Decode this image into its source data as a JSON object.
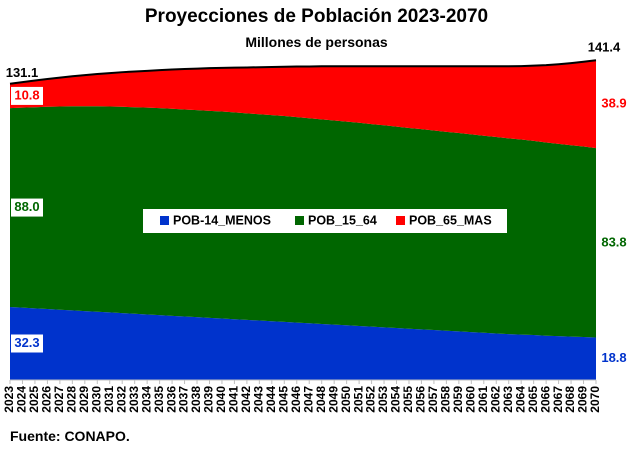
{
  "title": "Proyecciones de Población 2023-2070",
  "subtitle": "Millones de personas",
  "source": "Fuente: CONAPO.",
  "chart_data": {
    "type": "area",
    "stacked": true,
    "x": [
      "2023",
      "2024",
      "2025",
      "2026",
      "2027",
      "2028",
      "2029",
      "2030",
      "2031",
      "2032",
      "2033",
      "2034",
      "2035",
      "2036",
      "2037",
      "2038",
      "2039",
      "2040",
      "2041",
      "2042",
      "2043",
      "2044",
      "2045",
      "2046",
      "2047",
      "2048",
      "2049",
      "2050",
      "2051",
      "2052",
      "2053",
      "2054",
      "2055",
      "2056",
      "2057",
      "2058",
      "2059",
      "2060",
      "2061",
      "2062",
      "2063",
      "2064",
      "2065",
      "2066",
      "2067",
      "2068",
      "2069",
      "2070"
    ],
    "series": [
      {
        "name": "POB-14_MENOS",
        "color": "#0033CC",
        "values": [
          32.3,
          32.0,
          31.7,
          31.4,
          31.1,
          30.8,
          30.5,
          30.2,
          29.9,
          29.6,
          29.3,
          29.0,
          28.7,
          28.4,
          28.1,
          27.8,
          27.5,
          27.2,
          26.9,
          26.6,
          26.3,
          26.0,
          25.7,
          25.4,
          25.1,
          24.8,
          24.5,
          24.2,
          23.9,
          23.6,
          23.3,
          23.0,
          22.7,
          22.4,
          22.1,
          21.8,
          21.5,
          21.2,
          20.9,
          20.6,
          20.3,
          20.1,
          19.9,
          19.6,
          19.4,
          19.2,
          19.0,
          18.8
        ]
      },
      {
        "name": "POB_15_64",
        "color": "#006600",
        "values": [
          88.0,
          88.5,
          89.0,
          89.5,
          89.9,
          90.3,
          90.6,
          90.9,
          91.1,
          91.3,
          91.4,
          91.5,
          91.6,
          91.6,
          91.6,
          91.6,
          91.6,
          91.6,
          91.5,
          91.4,
          91.3,
          91.2,
          91.1,
          90.9,
          90.7,
          90.5,
          90.3,
          90.1,
          89.9,
          89.6,
          89.4,
          89.1,
          88.8,
          88.6,
          88.3,
          88.0,
          87.8,
          87.5,
          87.2,
          86.9,
          86.6,
          86.3,
          85.9,
          85.5,
          85.1,
          84.7,
          84.3,
          83.8
        ]
      },
      {
        "name": "POB_65_MAS",
        "color": "#FF0000",
        "values": [
          10.8,
          11.3,
          11.8,
          12.3,
          12.8,
          13.3,
          13.8,
          14.3,
          14.8,
          15.3,
          15.8,
          16.3,
          16.8,
          17.4,
          17.9,
          18.4,
          18.9,
          19.3,
          19.8,
          20.3,
          20.8,
          21.3,
          21.8,
          22.4,
          22.9,
          23.5,
          24.0,
          24.5,
          25.0,
          25.6,
          26.1,
          26.7,
          27.3,
          27.8,
          28.4,
          29.0,
          29.5,
          30.1,
          30.7,
          31.3,
          31.9,
          32.5,
          33.3,
          34.2,
          35.2,
          36.3,
          37.5,
          38.9
        ]
      }
    ],
    "totals": [
      131.1,
      141.4
    ],
    "data_labels": {
      "start": [
        "32.3",
        "88.0",
        "10.8"
      ],
      "end": [
        "18.8",
        "83.8",
        "38.9"
      ],
      "total_start": "131.1",
      "total_end": "141.4"
    },
    "total_line_color": "#000000",
    "ylim": [
      0,
      150
    ],
    "grid": false,
    "legend": {
      "position": "center",
      "entries": [
        "POB-14_MENOS",
        "POB_15_64",
        "POB_65_MAS"
      ]
    }
  }
}
